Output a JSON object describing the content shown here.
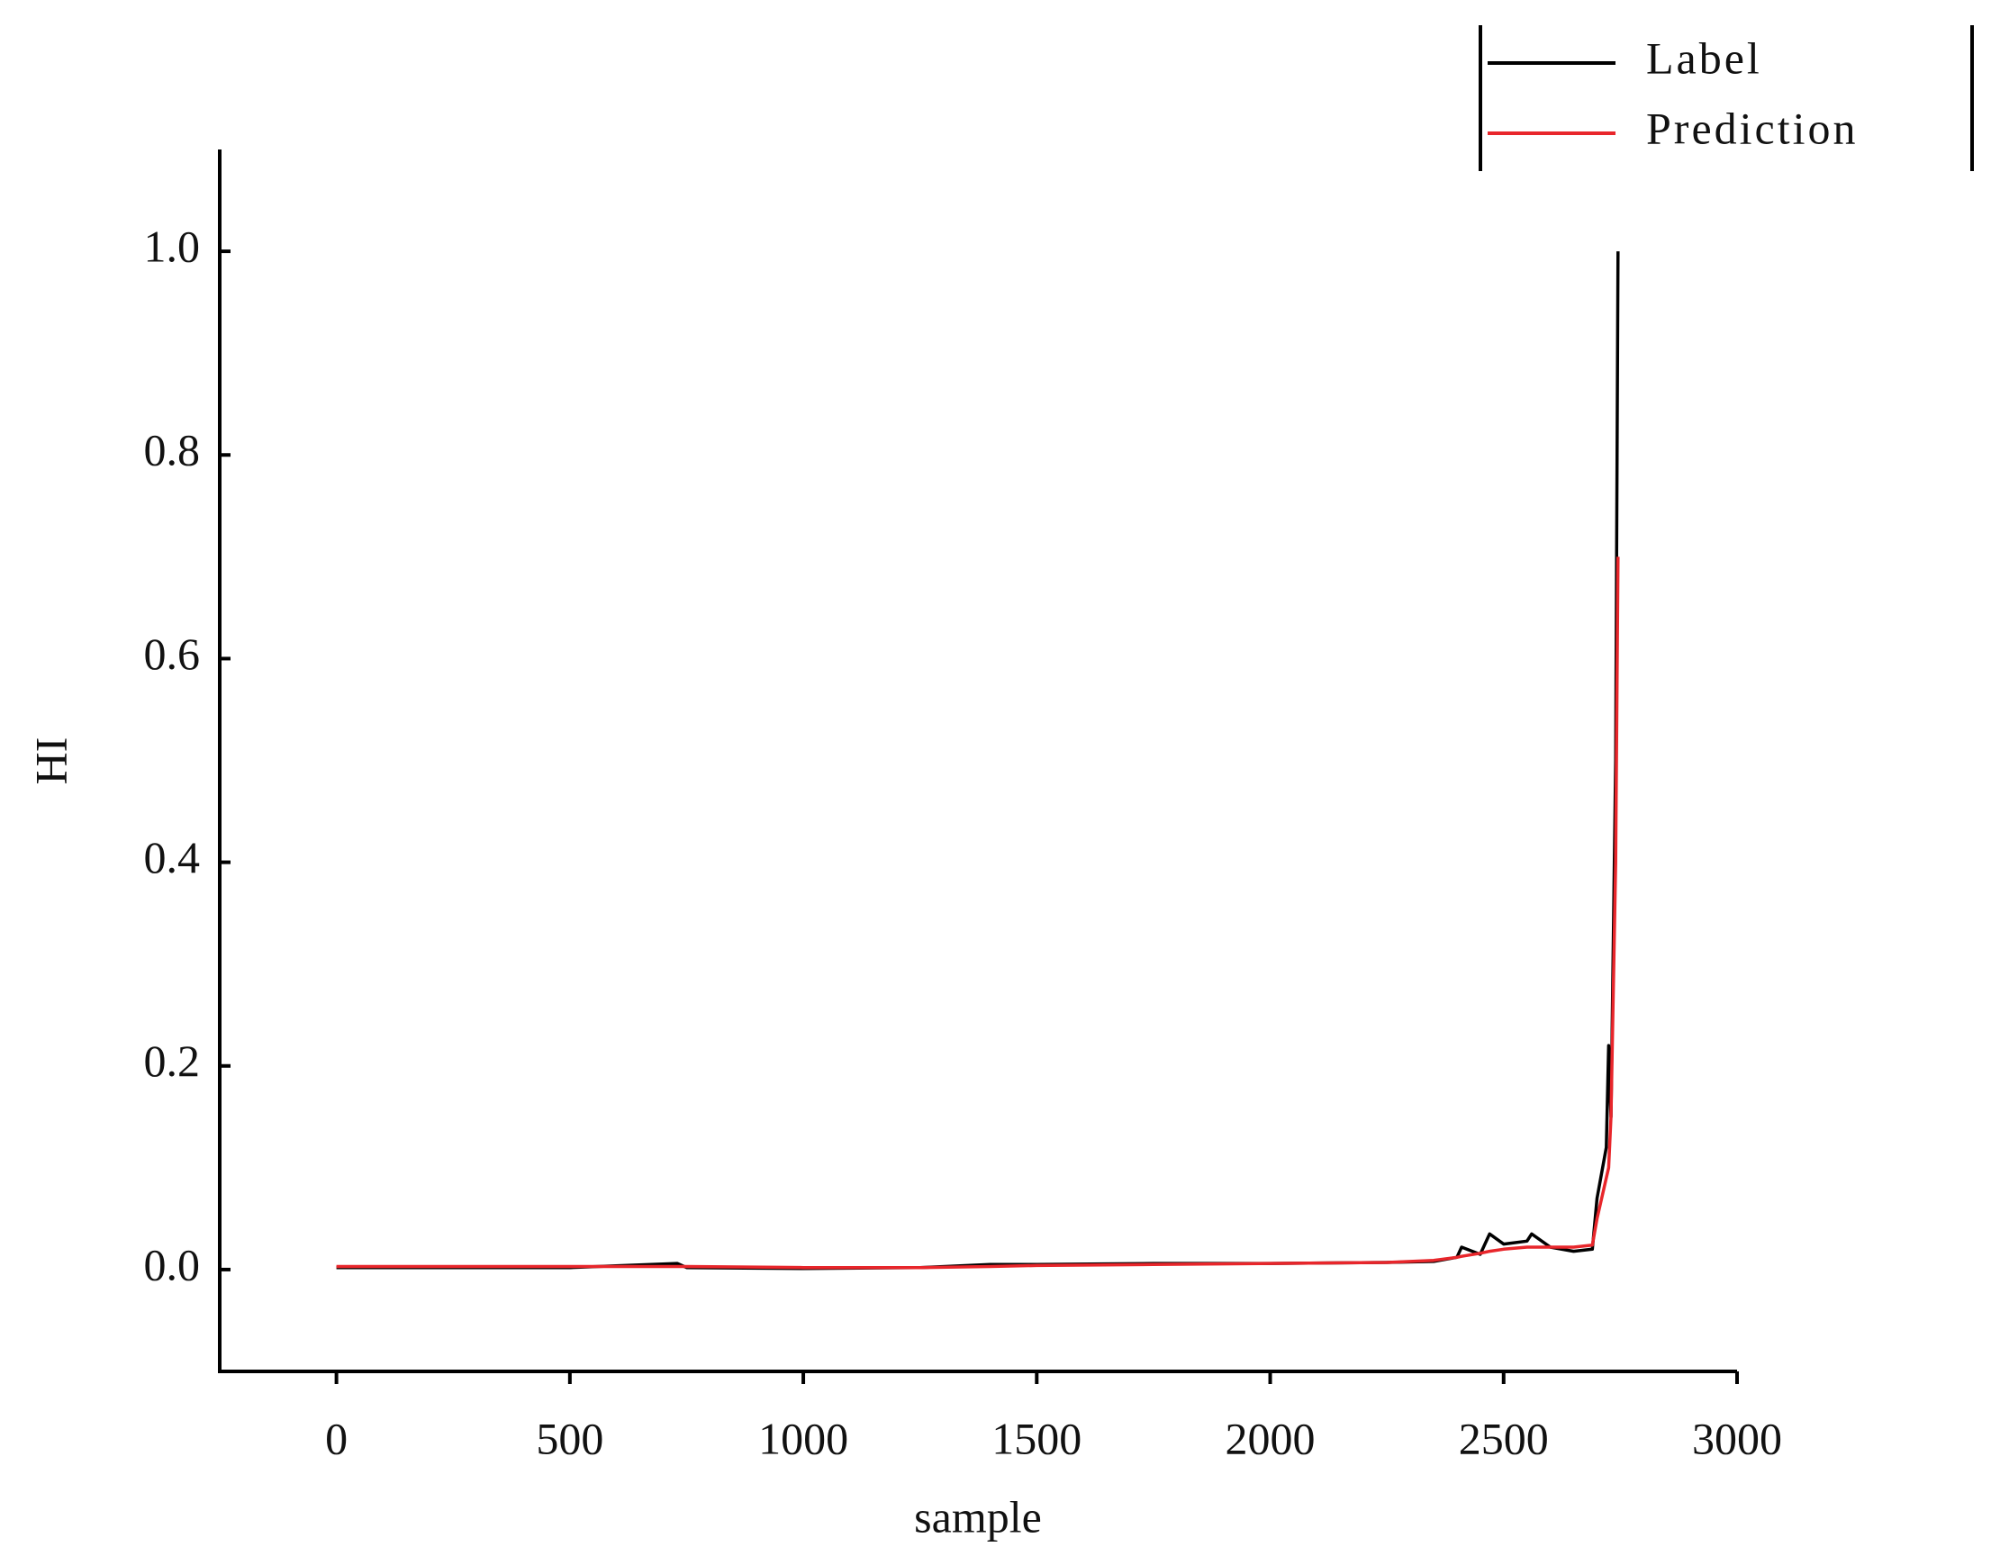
{
  "chart_data": {
    "type": "line",
    "x_label": "sample",
    "y_label": "HI",
    "x": [
      0,
      250,
      500,
      730,
      750,
      1000,
      1250,
      1400,
      1500,
      1750,
      2000,
      2250,
      2350,
      2400,
      2410,
      2450,
      2470,
      2500,
      2550,
      2560,
      2600,
      2650,
      2690,
      2700,
      2720,
      2725,
      2730,
      2740,
      2745
    ],
    "series": [
      {
        "name": "Label",
        "color": "#000000",
        "values": [
          0.002,
          0.002,
          0.002,
          0.006,
          0.002,
          0.001,
          0.002,
          0.005,
          0.005,
          0.006,
          0.006,
          0.007,
          0.008,
          0.012,
          0.022,
          0.015,
          0.035,
          0.025,
          0.028,
          0.035,
          0.022,
          0.018,
          0.02,
          0.07,
          0.12,
          0.22,
          0.15,
          0.5,
          1.0
        ]
      },
      {
        "name": "Prediction",
        "color": "#e8262b",
        "values": [
          0.003,
          0.003,
          0.003,
          0.003,
          0.003,
          0.002,
          0.002,
          0.003,
          0.004,
          0.005,
          0.006,
          0.007,
          0.009,
          0.012,
          0.013,
          0.016,
          0.018,
          0.02,
          0.022,
          0.022,
          0.022,
          0.022,
          0.024,
          0.05,
          0.09,
          0.1,
          0.15,
          0.4,
          0.7
        ]
      }
    ],
    "xlim": [
      -250,
      3000
    ],
    "xticks": [
      0,
      500,
      1000,
      1500,
      2000,
      2500,
      3000
    ],
    "ylim": [
      -0.1,
      1.1
    ],
    "yticks": [
      {
        "value": 0,
        "label": "0.0"
      },
      0.2,
      0.4,
      0.6,
      0.8,
      {
        "value": 1,
        "label": "1.0"
      }
    ],
    "grid": false,
    "legend": "top-right"
  }
}
